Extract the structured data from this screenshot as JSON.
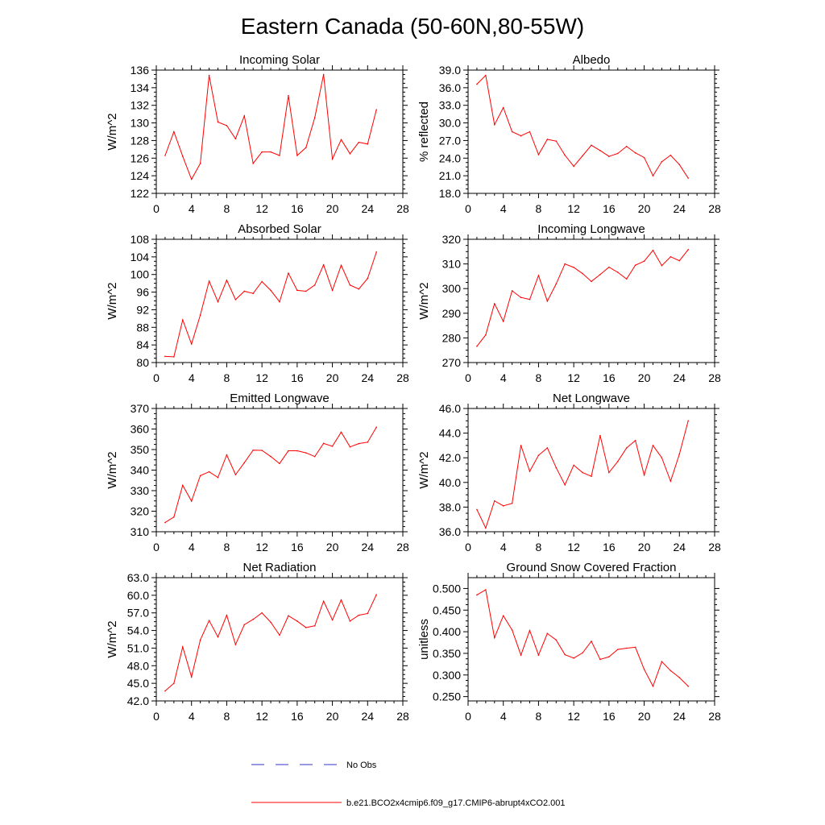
{
  "figure_title": "Eastern Canada (50-60N,80-55W)",
  "colors": {
    "model": "#ff0000",
    "obs": "#3333cc",
    "axis": "#000000"
  },
  "legend": {
    "obs_label": "No Obs",
    "model_label": "b.e21.BCO2x4cmip6.f09_g17.CMIP6-abrupt4xCO2.001"
  },
  "chart_data": [
    {
      "type": "line",
      "title": "Incoming Solar",
      "ylabel": "W/m^2",
      "xlim": [
        0,
        28
      ],
      "xticks": [
        0,
        4,
        8,
        12,
        16,
        20,
        24,
        28
      ],
      "ylim": [
        122,
        136
      ],
      "yticks": [
        "122",
        "124",
        "126",
        "128",
        "130",
        "132",
        "134",
        "136"
      ],
      "x": [
        1,
        2,
        3,
        4,
        5,
        6,
        7,
        8,
        9,
        10,
        11,
        12,
        13,
        14,
        15,
        16,
        17,
        18,
        19,
        20,
        21,
        22,
        23,
        24,
        25
      ],
      "values": [
        126.3,
        129.0,
        126.2,
        123.6,
        125.4,
        135.4,
        130.1,
        129.7,
        128.2,
        130.8,
        125.4,
        126.7,
        126.7,
        126.3,
        133.1,
        126.3,
        127.2,
        130.6,
        135.5,
        125.9,
        128.1,
        126.5,
        127.8,
        127.6,
        131.5
      ]
    },
    {
      "type": "line",
      "title": "Albedo",
      "ylabel": "% reflected",
      "xlim": [
        0,
        28
      ],
      "xticks": [
        0,
        4,
        8,
        12,
        16,
        20,
        24,
        28
      ],
      "ylim": [
        18,
        39
      ],
      "yticks": [
        "18.0",
        "21.0",
        "24.0",
        "27.0",
        "30.0",
        "33.0",
        "36.0",
        "39.0"
      ],
      "x": [
        1,
        2,
        3,
        4,
        5,
        6,
        7,
        8,
        9,
        10,
        11,
        12,
        13,
        14,
        15,
        16,
        17,
        18,
        19,
        20,
        21,
        22,
        23,
        24,
        25
      ],
      "values": [
        36.6,
        38.1,
        29.7,
        32.6,
        28.5,
        27.8,
        28.5,
        24.6,
        27.2,
        26.9,
        24.5,
        22.6,
        24.4,
        26.2,
        25.3,
        24.3,
        24.8,
        26.0,
        24.9,
        24.1,
        21.0,
        23.4,
        24.5,
        22.9,
        20.6
      ]
    },
    {
      "type": "line",
      "title": "Absorbed Solar",
      "ylabel": "W/m^2",
      "xlim": [
        0,
        28
      ],
      "xticks": [
        0,
        4,
        8,
        12,
        16,
        20,
        24,
        28
      ],
      "ylim": [
        80,
        108
      ],
      "yticks": [
        "80",
        "84",
        "88",
        "92",
        "96",
        "100",
        "104",
        "108"
      ],
      "x": [
        1,
        2,
        3,
        4,
        5,
        6,
        7,
        8,
        9,
        10,
        11,
        12,
        13,
        14,
        15,
        16,
        17,
        18,
        19,
        20,
        21,
        22,
        23,
        24,
        25
      ],
      "values": [
        81.4,
        81.3,
        89.7,
        84.2,
        90.8,
        98.5,
        93.8,
        98.7,
        94.3,
        96.2,
        95.7,
        98.4,
        96.4,
        93.8,
        100.3,
        96.4,
        96.2,
        97.6,
        102.2,
        96.4,
        102.1,
        97.6,
        96.7,
        99.1,
        105.1
      ]
    },
    {
      "type": "line",
      "title": "Incoming Longwave",
      "ylabel": "W/m^2",
      "xlim": [
        0,
        28
      ],
      "xticks": [
        0,
        4,
        8,
        12,
        16,
        20,
        24,
        28
      ],
      "ylim": [
        270,
        320
      ],
      "yticks": [
        "270",
        "280",
        "290",
        "300",
        "310",
        "320"
      ],
      "x": [
        1,
        2,
        3,
        4,
        5,
        6,
        7,
        8,
        9,
        10,
        11,
        12,
        13,
        14,
        15,
        16,
        17,
        18,
        19,
        20,
        21,
        22,
        23,
        24,
        25
      ],
      "values": [
        276.6,
        281.2,
        293.9,
        286.7,
        299.1,
        296.4,
        295.6,
        305.3,
        294.9,
        301.9,
        310.0,
        308.6,
        306.1,
        302.9,
        305.7,
        308.7,
        306.6,
        303.9,
        309.5,
        311.1,
        315.5,
        309.3,
        312.9,
        311.3,
        315.8
      ]
    },
    {
      "type": "line",
      "title": "Emitted Longwave",
      "ylabel": "W/m^2",
      "xlim": [
        0,
        28
      ],
      "xticks": [
        0,
        4,
        8,
        12,
        16,
        20,
        24,
        28
      ],
      "ylim": [
        310,
        370
      ],
      "yticks": [
        "310",
        "320",
        "330",
        "340",
        "350",
        "360",
        "370"
      ],
      "x": [
        1,
        2,
        3,
        4,
        5,
        6,
        7,
        8,
        9,
        10,
        11,
        12,
        13,
        14,
        15,
        16,
        17,
        18,
        19,
        20,
        21,
        22,
        23,
        24,
        25
      ],
      "values": [
        314.5,
        317.2,
        332.6,
        324.9,
        337.3,
        339.2,
        336.4,
        347.4,
        337.8,
        343.6,
        349.7,
        349.6,
        346.6,
        343.2,
        349.4,
        349.4,
        348.4,
        346.6,
        353.0,
        351.6,
        358.5,
        351.3,
        352.9,
        353.6,
        360.9
      ]
    },
    {
      "type": "line",
      "title": "Net Longwave",
      "ylabel": "W/m^2",
      "xlim": [
        0,
        28
      ],
      "xticks": [
        0,
        4,
        8,
        12,
        16,
        20,
        24,
        28
      ],
      "ylim": [
        36,
        46
      ],
      "yticks": [
        "36.0",
        "38.0",
        "40.0",
        "42.0",
        "44.0",
        "46.0"
      ],
      "x": [
        1,
        2,
        3,
        4,
        5,
        6,
        7,
        8,
        9,
        10,
        11,
        12,
        13,
        14,
        15,
        16,
        17,
        18,
        19,
        20,
        21,
        22,
        23,
        24,
        25
      ],
      "values": [
        37.8,
        36.3,
        38.5,
        38.1,
        38.3,
        43.0,
        40.9,
        42.2,
        42.8,
        41.2,
        39.8,
        41.4,
        40.8,
        40.5,
        43.8,
        40.8,
        41.7,
        42.8,
        43.4,
        40.6,
        43.0,
        42.0,
        40.1,
        42.3,
        45.0
      ]
    },
    {
      "type": "line",
      "title": "Net Radiation",
      "ylabel": "W/m^2",
      "xlim": [
        0,
        28
      ],
      "xticks": [
        0,
        4,
        8,
        12,
        16,
        20,
        24,
        28
      ],
      "ylim": [
        42,
        63
      ],
      "yticks": [
        "42.0",
        "45.0",
        "48.0",
        "51.0",
        "54.0",
        "57.0",
        "60.0",
        "63.0"
      ],
      "x": [
        1,
        2,
        3,
        4,
        5,
        6,
        7,
        8,
        9,
        10,
        11,
        12,
        13,
        14,
        15,
        16,
        17,
        18,
        19,
        20,
        21,
        22,
        23,
        24,
        25
      ],
      "values": [
        43.7,
        45.0,
        51.2,
        46.1,
        52.4,
        55.7,
        52.9,
        56.6,
        51.6,
        55.0,
        55.9,
        57.0,
        55.4,
        53.2,
        56.5,
        55.6,
        54.5,
        54.8,
        59.0,
        55.8,
        59.2,
        55.6,
        56.6,
        56.9,
        60.1
      ]
    },
    {
      "type": "line",
      "title": "Ground Snow Covered Fraction",
      "ylabel": "unitless",
      "xlim": [
        0,
        28
      ],
      "xticks": [
        0,
        4,
        8,
        12,
        16,
        20,
        24,
        28
      ],
      "ylim": [
        0.24,
        0.525
      ],
      "yticks": [
        "0.250",
        "0.300",
        "0.350",
        "0.400",
        "0.450",
        "0.500"
      ],
      "x": [
        1,
        2,
        3,
        4,
        5,
        6,
        7,
        8,
        9,
        10,
        11,
        12,
        13,
        14,
        15,
        16,
        17,
        18,
        19,
        20,
        21,
        22,
        23,
        24,
        25
      ],
      "values": [
        0.485,
        0.497,
        0.386,
        0.437,
        0.404,
        0.346,
        0.403,
        0.346,
        0.396,
        0.381,
        0.347,
        0.339,
        0.351,
        0.378,
        0.336,
        0.342,
        0.359,
        0.362,
        0.364,
        0.313,
        0.274,
        0.331,
        0.31,
        0.294,
        0.274
      ]
    }
  ]
}
